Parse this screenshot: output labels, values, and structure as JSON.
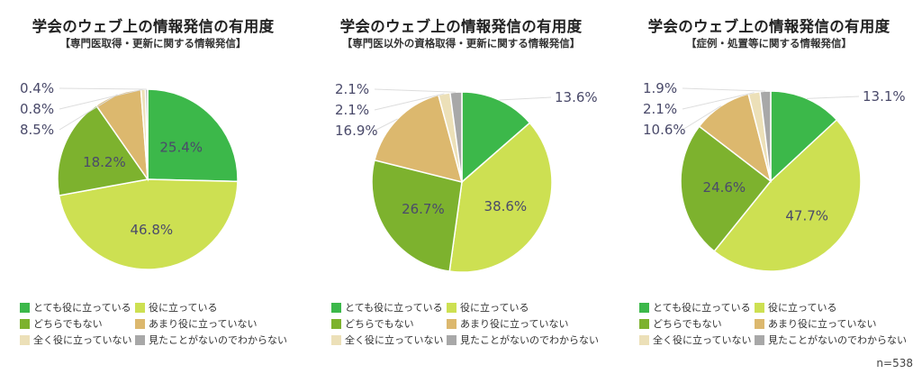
{
  "chart_data": [
    {
      "type": "pie",
      "title": "学会のウェブ上の情報発信の有用度",
      "subtitle": "【専門医取得・更新に関する情報発信】",
      "slices": [
        {
          "category": "とても役に立っている",
          "value": 25.4,
          "label": "25.4%"
        },
        {
          "category": "役に立っている",
          "value": 46.8,
          "label": "46.8%"
        },
        {
          "category": "どちらでもない",
          "value": 18.2,
          "label": "18.2%"
        },
        {
          "category": "あまり役に立っていない",
          "value": 8.5,
          "label": "8.5%"
        },
        {
          "category": "全く役に立っていない",
          "value": 0.8,
          "label": "0.8%"
        },
        {
          "category": "見たことがないのでわからない",
          "value": 0.4,
          "label": "0.4%"
        }
      ]
    },
    {
      "type": "pie",
      "title": "学会のウェブ上の情報発信の有用度",
      "subtitle": "【専門医以外の資格取得・更新に関する情報発信】",
      "slices": [
        {
          "category": "とても役に立っている",
          "value": 13.6,
          "label": "13.6%"
        },
        {
          "category": "役に立っている",
          "value": 38.6,
          "label": "38.6%"
        },
        {
          "category": "どちらでもない",
          "value": 26.7,
          "label": "26.7%"
        },
        {
          "category": "あまり役に立っていない",
          "value": 16.9,
          "label": "16.9%"
        },
        {
          "category": "全く役に立っていない",
          "value": 2.1,
          "label": "2.1%"
        },
        {
          "category": "見たことがないのでわからない",
          "value": 2.1,
          "label": "2.1%"
        }
      ]
    },
    {
      "type": "pie",
      "title": "学会のウェブ上の情報発信の有用度",
      "subtitle": "【症例・処置等に関する情報発信】",
      "slices": [
        {
          "category": "とても役に立っている",
          "value": 13.1,
          "label": "13.1%"
        },
        {
          "category": "役に立っている",
          "value": 47.7,
          "label": "47.7%"
        },
        {
          "category": "どちらでもない",
          "value": 24.6,
          "label": "24.6%"
        },
        {
          "category": "あまり役に立っていない",
          "value": 10.6,
          "label": "10.6%"
        },
        {
          "category": "全く役に立っていない",
          "value": 2.1,
          "label": "2.1%"
        },
        {
          "category": "見たことがないのでわからない",
          "value": 1.9,
          "label": "1.9%"
        }
      ]
    }
  ],
  "legend": [
    {
      "label": "とても役に立っている",
      "color": "#3cb84a"
    },
    {
      "label": "役に立っている",
      "color": "#cde052"
    },
    {
      "label": "どちらでもない",
      "color": "#7db22e"
    },
    {
      "label": "あまり役に立っていない",
      "color": "#dcb86e"
    },
    {
      "label": "全く役に立っていない",
      "color": "#ece0b8"
    },
    {
      "label": "見たことがないのでわからない",
      "color": "#a8a8a8"
    }
  ],
  "footnote": "n=538"
}
